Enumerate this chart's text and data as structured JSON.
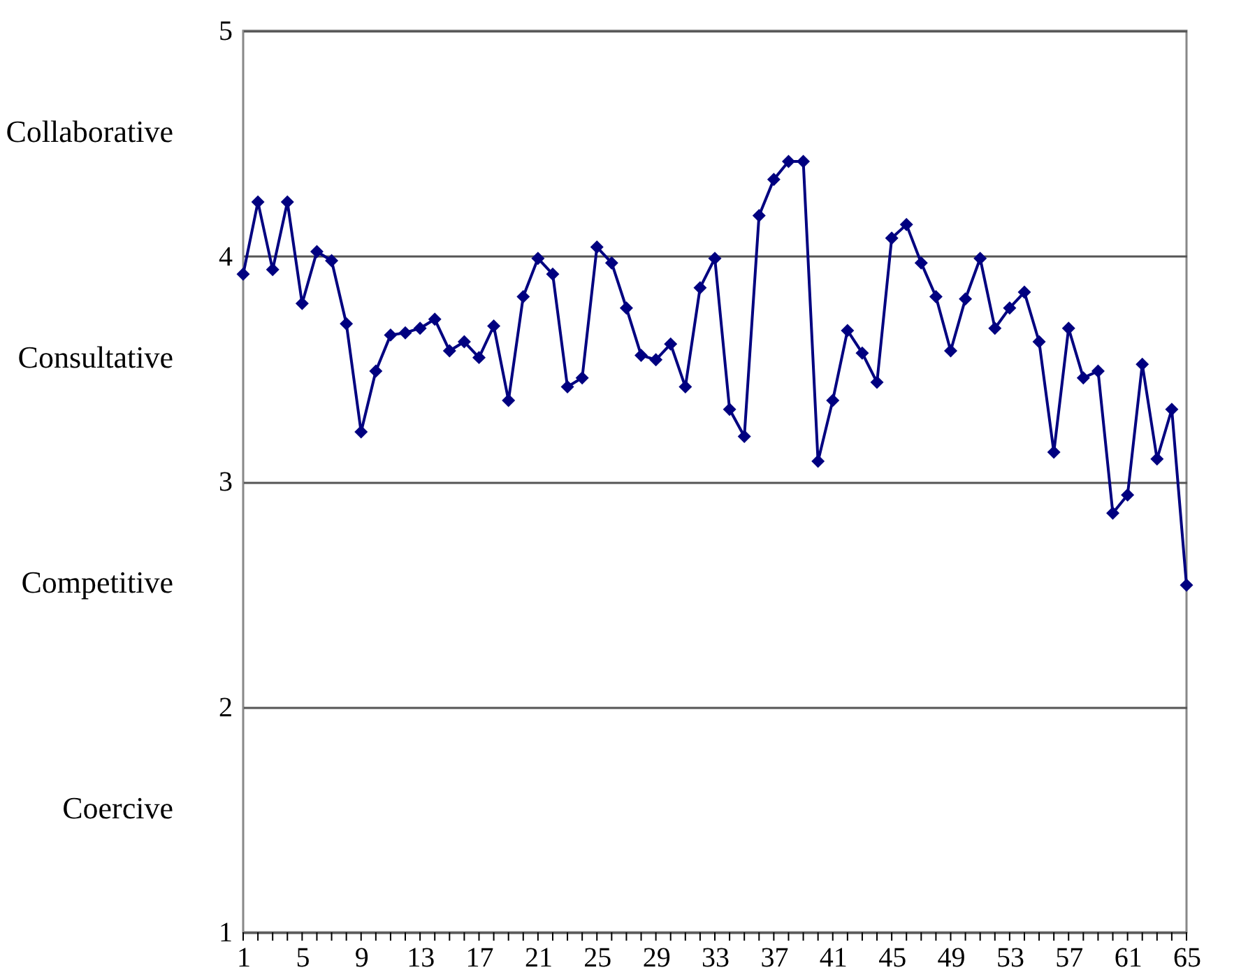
{
  "chart_data": {
    "type": "line",
    "x": [
      1,
      2,
      3,
      4,
      5,
      6,
      7,
      8,
      9,
      10,
      11,
      12,
      13,
      14,
      15,
      16,
      17,
      18,
      19,
      20,
      21,
      22,
      23,
      24,
      25,
      26,
      27,
      28,
      29,
      30,
      31,
      32,
      33,
      34,
      35,
      36,
      37,
      38,
      39,
      40,
      41,
      42,
      43,
      44,
      45,
      46,
      47,
      48,
      49,
      50,
      51,
      52,
      53,
      54,
      55,
      56,
      57,
      58,
      59,
      60,
      61,
      62,
      63,
      64,
      65
    ],
    "series": [
      {
        "color": "#000080",
        "values": [
          3.92,
          4.24,
          3.94,
          4.24,
          3.79,
          4.02,
          3.98,
          3.7,
          3.22,
          3.49,
          3.65,
          3.66,
          3.68,
          3.72,
          3.58,
          3.62,
          3.55,
          3.69,
          3.36,
          3.82,
          3.99,
          3.92,
          3.42,
          3.46,
          4.04,
          3.97,
          3.77,
          3.56,
          3.54,
          3.61,
          3.42,
          3.86,
          3.99,
          3.32,
          3.2,
          4.18,
          4.34,
          4.42,
          4.42,
          3.09,
          3.36,
          3.67,
          3.57,
          3.44,
          4.08,
          4.14,
          3.97,
          3.82,
          3.58,
          3.81,
          3.99,
          3.68,
          3.77,
          3.84,
          3.62,
          3.13,
          3.68,
          3.46,
          3.49,
          2.86,
          2.94,
          3.52,
          3.1,
          3.32,
          2.54
        ]
      }
    ],
    "xlim": [
      1,
      65
    ],
    "xticks": [
      1,
      {
        "value": 2,
        "label": null
      },
      {
        "value": 3,
        "label": null
      },
      {
        "value": 4,
        "label": null
      },
      5,
      {
        "value": 6,
        "label": null
      },
      {
        "value": 7,
        "label": null
      },
      {
        "value": 8,
        "label": null
      },
      9,
      {
        "value": 10,
        "label": null
      },
      {
        "value": 11,
        "label": null
      },
      {
        "value": 12,
        "label": null
      },
      13,
      {
        "value": 14,
        "label": null
      },
      {
        "value": 15,
        "label": null
      },
      {
        "value": 16,
        "label": null
      },
      17,
      {
        "value": 18,
        "label": null
      },
      {
        "value": 19,
        "label": null
      },
      {
        "value": 20,
        "label": null
      },
      21,
      {
        "value": 22,
        "label": null
      },
      {
        "value": 23,
        "label": null
      },
      {
        "value": 24,
        "label": null
      },
      25,
      {
        "value": 26,
        "label": null
      },
      {
        "value": 27,
        "label": null
      },
      {
        "value": 28,
        "label": null
      },
      29,
      {
        "value": 30,
        "label": null
      },
      {
        "value": 31,
        "label": null
      },
      {
        "value": 32,
        "label": null
      },
      33,
      {
        "value": 34,
        "label": null
      },
      {
        "value": 35,
        "label": null
      },
      {
        "value": 36,
        "label": null
      },
      37,
      {
        "value": 38,
        "label": null
      },
      {
        "value": 39,
        "label": null
      },
      {
        "value": 40,
        "label": null
      },
      41,
      {
        "value": 42,
        "label": null
      },
      {
        "value": 43,
        "label": null
      },
      {
        "value": 44,
        "label": null
      },
      45,
      {
        "value": 46,
        "label": null
      },
      {
        "value": 47,
        "label": null
      },
      {
        "value": 48,
        "label": null
      },
      49,
      {
        "value": 50,
        "label": null
      },
      {
        "value": 51,
        "label": null
      },
      {
        "value": 52,
        "label": null
      },
      53,
      {
        "value": 54,
        "label": null
      },
      {
        "value": 55,
        "label": null
      },
      {
        "value": 56,
        "label": null
      },
      57,
      {
        "value": 58,
        "label": null
      },
      {
        "value": 59,
        "label": null
      },
      {
        "value": 60,
        "label": null
      },
      61,
      {
        "value": 62,
        "label": null
      },
      {
        "value": 63,
        "label": null
      },
      {
        "value": 64,
        "label": null
      },
      65
    ],
    "ylim": [
      1,
      5
    ],
    "yticks": [
      1,
      2,
      3,
      4,
      5
    ],
    "grid": "y",
    "marker": "diamond",
    "line_style": "solid",
    "legend": false,
    "annotations": [
      "Collaborative",
      "Consultative",
      "Competitive",
      "Coercive"
    ]
  }
}
